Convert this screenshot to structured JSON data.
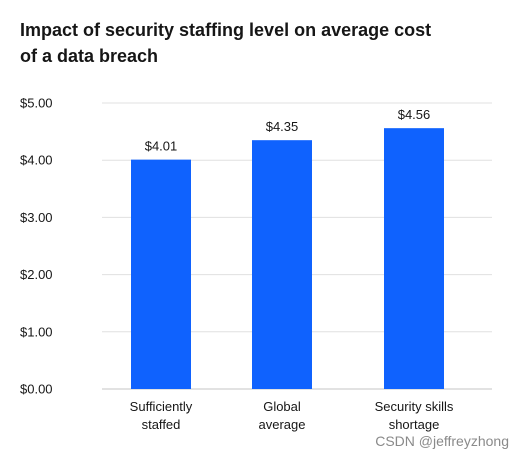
{
  "chart_data": {
    "type": "bar",
    "title": "Impact of security staffing level on average cost of a data breach",
    "categories": [
      [
        "Sufficiently",
        "staffed"
      ],
      [
        "Global",
        "average"
      ],
      [
        "Security skills",
        "shortage"
      ]
    ],
    "values": [
      4.01,
      4.35,
      4.56
    ],
    "data_labels": [
      "$4.01",
      "$4.35",
      "$4.56"
    ],
    "y_ticks": [
      0,
      1,
      2,
      3,
      4,
      5
    ],
    "y_tick_labels": [
      "$0.00",
      "$1.00",
      "$2.00",
      "$3.00",
      "$4.00",
      "$5.00"
    ],
    "ylim": [
      0,
      5
    ],
    "xlabel": "",
    "ylabel": "",
    "grid": true,
    "bar_color": "#0f62fe",
    "grid_color": "#e0e0e0"
  },
  "watermark": "CSDN @jeffreyzhong"
}
